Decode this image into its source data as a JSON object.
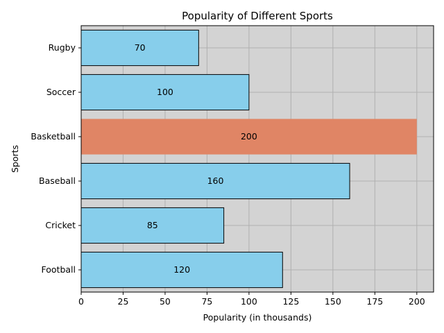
{
  "chart_data": {
    "type": "bar",
    "orientation": "horizontal",
    "title": "Popularity of Different Sports",
    "xlabel": "Popularity (in thousands)",
    "ylabel": "Sports",
    "categories": [
      "Football",
      "Cricket",
      "Baseball",
      "Basketball",
      "Soccer",
      "Rugby"
    ],
    "values": [
      120,
      85,
      160,
      200,
      100,
      70
    ],
    "value_labels": [
      "120",
      "85",
      "160",
      "200",
      "100",
      "70"
    ],
    "xlim": [
      0,
      210
    ],
    "xticks": [
      0,
      25,
      50,
      75,
      100,
      125,
      150,
      175,
      200
    ],
    "xtick_labels": [
      "0",
      "25",
      "50",
      "75",
      "100",
      "125",
      "150",
      "175",
      "200"
    ],
    "grid": true,
    "highlighted_category": "Basketball",
    "colors": {
      "bar": "#87ceeb",
      "highlight": "#e08565",
      "bar_edge": "#000000",
      "plot_background": "#d3d3d3",
      "grid": "#b0b0b0"
    }
  }
}
